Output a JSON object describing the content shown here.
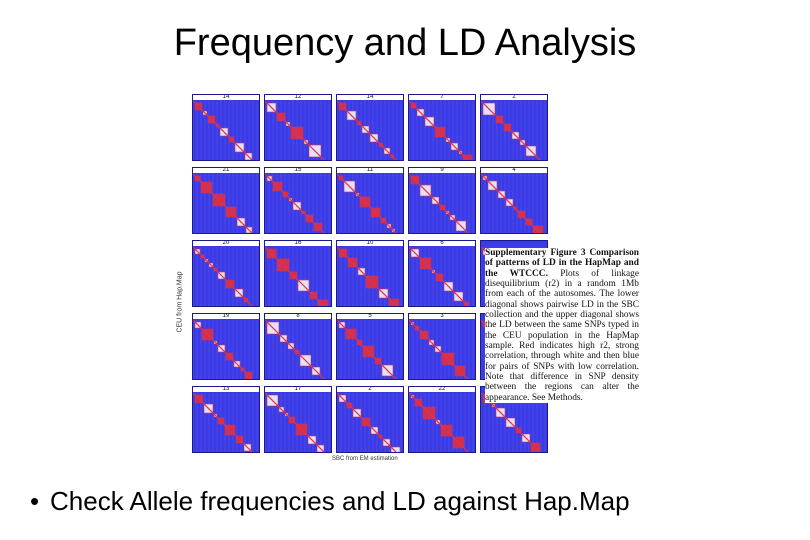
{
  "slide": {
    "title": "Frequency and LD Analysis",
    "bullet_symbol": "•",
    "bullet": "Check Allele frequencies and LD against Hap.Map"
  },
  "figure": {
    "y_axis_label": "CEU from Hap.Map",
    "x_axis_label": "SBC from EM estimation",
    "panel_labels": [
      "14",
      "12",
      "14",
      "7",
      "2",
      "21",
      "15",
      "11",
      "9",
      "4",
      "20",
      "16",
      "10",
      "6",
      "",
      "19",
      "8",
      "5",
      "3",
      "",
      "13",
      "17",
      "2",
      "22",
      ""
    ],
    "caption_heading": "Supplementary Figure 3 Comparison of patterns of LD in the HapMap and the WTCCC.",
    "caption_body": "Plots of linkage disequilibrium (r2) in a random 1Mb from each of the autosomes. The lower diagonal shows pairwise LD in the SBC collection and the upper diagonal shows the LD between the same SNPs typed in the CEU population in the HapMap sample. Red indicates high r2, strong correlation, through white and then blue for pairs of SNPs with low correlation. Note that difference in SNP density between the regions can alter the appearance. See Methods.",
    "colors": {
      "low_ld": "#3a3ae6",
      "mid_ld": "#ffffff",
      "high_ld": "#e8303a"
    }
  }
}
